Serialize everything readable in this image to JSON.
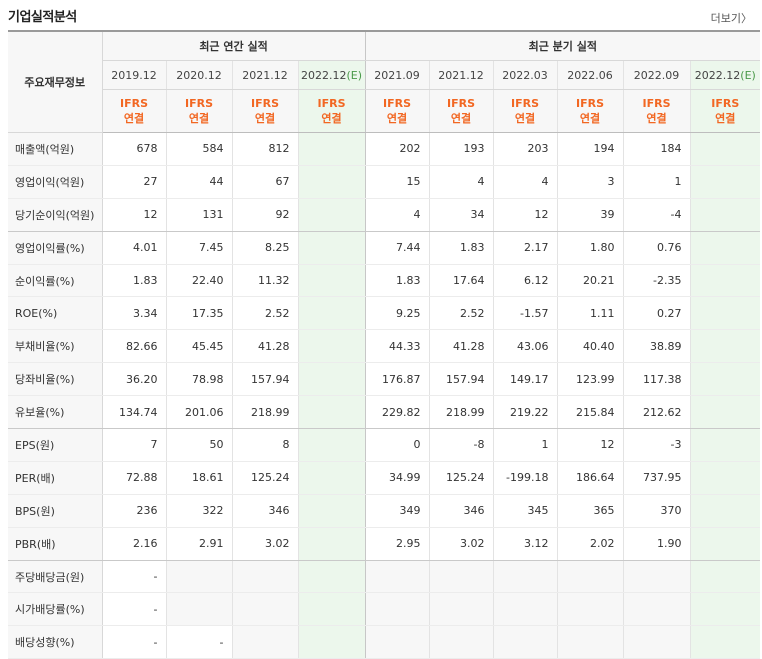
{
  "title": "기업실적분석",
  "more_label": "더보기",
  "more_arrow": "〉",
  "corner_label": "주요재무정보",
  "annual_header": "최근 연간 실적",
  "quarter_header": "최근 분기 실적",
  "periods": [
    "2019.12",
    "2020.12",
    "2021.12",
    "2022.12",
    "2021.09",
    "2021.12",
    "2022.03",
    "2022.06",
    "2022.09",
    "2022.12"
  ],
  "est_mark": "(E)",
  "ifrs_top": "IFRS",
  "ifrs_bottom": "연결",
  "rows": [
    {
      "label": "매출액(억원)",
      "values": [
        "678",
        "584",
        "812",
        "",
        "202",
        "193",
        "203",
        "194",
        "184",
        ""
      ]
    },
    {
      "label": "영업이익(억원)",
      "values": [
        "27",
        "44",
        "67",
        "",
        "15",
        "4",
        "4",
        "3",
        "1",
        ""
      ]
    },
    {
      "label": "당기순이익(억원)",
      "values": [
        "12",
        "131",
        "92",
        "",
        "4",
        "34",
        "12",
        "39",
        "-4",
        ""
      ]
    },
    {
      "label": "영업이익률(%)",
      "values": [
        "4.01",
        "7.45",
        "8.25",
        "",
        "7.44",
        "1.83",
        "2.17",
        "1.80",
        "0.76",
        ""
      ]
    },
    {
      "label": "순이익률(%)",
      "values": [
        "1.83",
        "22.40",
        "11.32",
        "",
        "1.83",
        "17.64",
        "6.12",
        "20.21",
        "-2.35",
        ""
      ]
    },
    {
      "label": "ROE(%)",
      "values": [
        "3.34",
        "17.35",
        "2.52",
        "",
        "9.25",
        "2.52",
        "-1.57",
        "1.11",
        "0.27",
        ""
      ]
    },
    {
      "label": "부채비율(%)",
      "values": [
        "82.66",
        "45.45",
        "41.28",
        "",
        "44.33",
        "41.28",
        "43.06",
        "40.40",
        "38.89",
        ""
      ]
    },
    {
      "label": "당좌비율(%)",
      "values": [
        "36.20",
        "78.98",
        "157.94",
        "",
        "176.87",
        "157.94",
        "149.17",
        "123.99",
        "117.38",
        ""
      ]
    },
    {
      "label": "유보율(%)",
      "values": [
        "134.74",
        "201.06",
        "218.99",
        "",
        "229.82",
        "218.99",
        "219.22",
        "215.84",
        "212.62",
        ""
      ]
    },
    {
      "label": "EPS(원)",
      "values": [
        "7",
        "50",
        "8",
        "",
        "0",
        "-8",
        "1",
        "12",
        "-3",
        ""
      ]
    },
    {
      "label": "PER(배)",
      "values": [
        "72.88",
        "18.61",
        "125.24",
        "",
        "34.99",
        "125.24",
        "-199.18",
        "186.64",
        "737.95",
        ""
      ]
    },
    {
      "label": "BPS(원)",
      "values": [
        "236",
        "322",
        "346",
        "",
        "349",
        "346",
        "345",
        "365",
        "370",
        ""
      ]
    },
    {
      "label": "PBR(배)",
      "values": [
        "2.16",
        "2.91",
        "3.02",
        "",
        "2.95",
        "3.02",
        "3.12",
        "2.02",
        "1.90",
        ""
      ]
    },
    {
      "label": "주당배당금(원)",
      "values": [
        "-",
        "",
        "",
        "",
        "",
        "",
        "",
        "",
        "",
        ""
      ]
    },
    {
      "label": "시가배당률(%)",
      "values": [
        "-",
        "",
        "",
        "",
        "",
        "",
        "",
        "",
        "",
        ""
      ]
    },
    {
      "label": "배당성향(%)",
      "values": [
        "-",
        "-",
        "",
        "",
        "",
        "",
        "",
        "",
        "",
        ""
      ]
    }
  ],
  "colors": {
    "ifrs": "#f26722",
    "negative": "#e01f1f",
    "estimate_bg": "#ecf7ec"
  }
}
